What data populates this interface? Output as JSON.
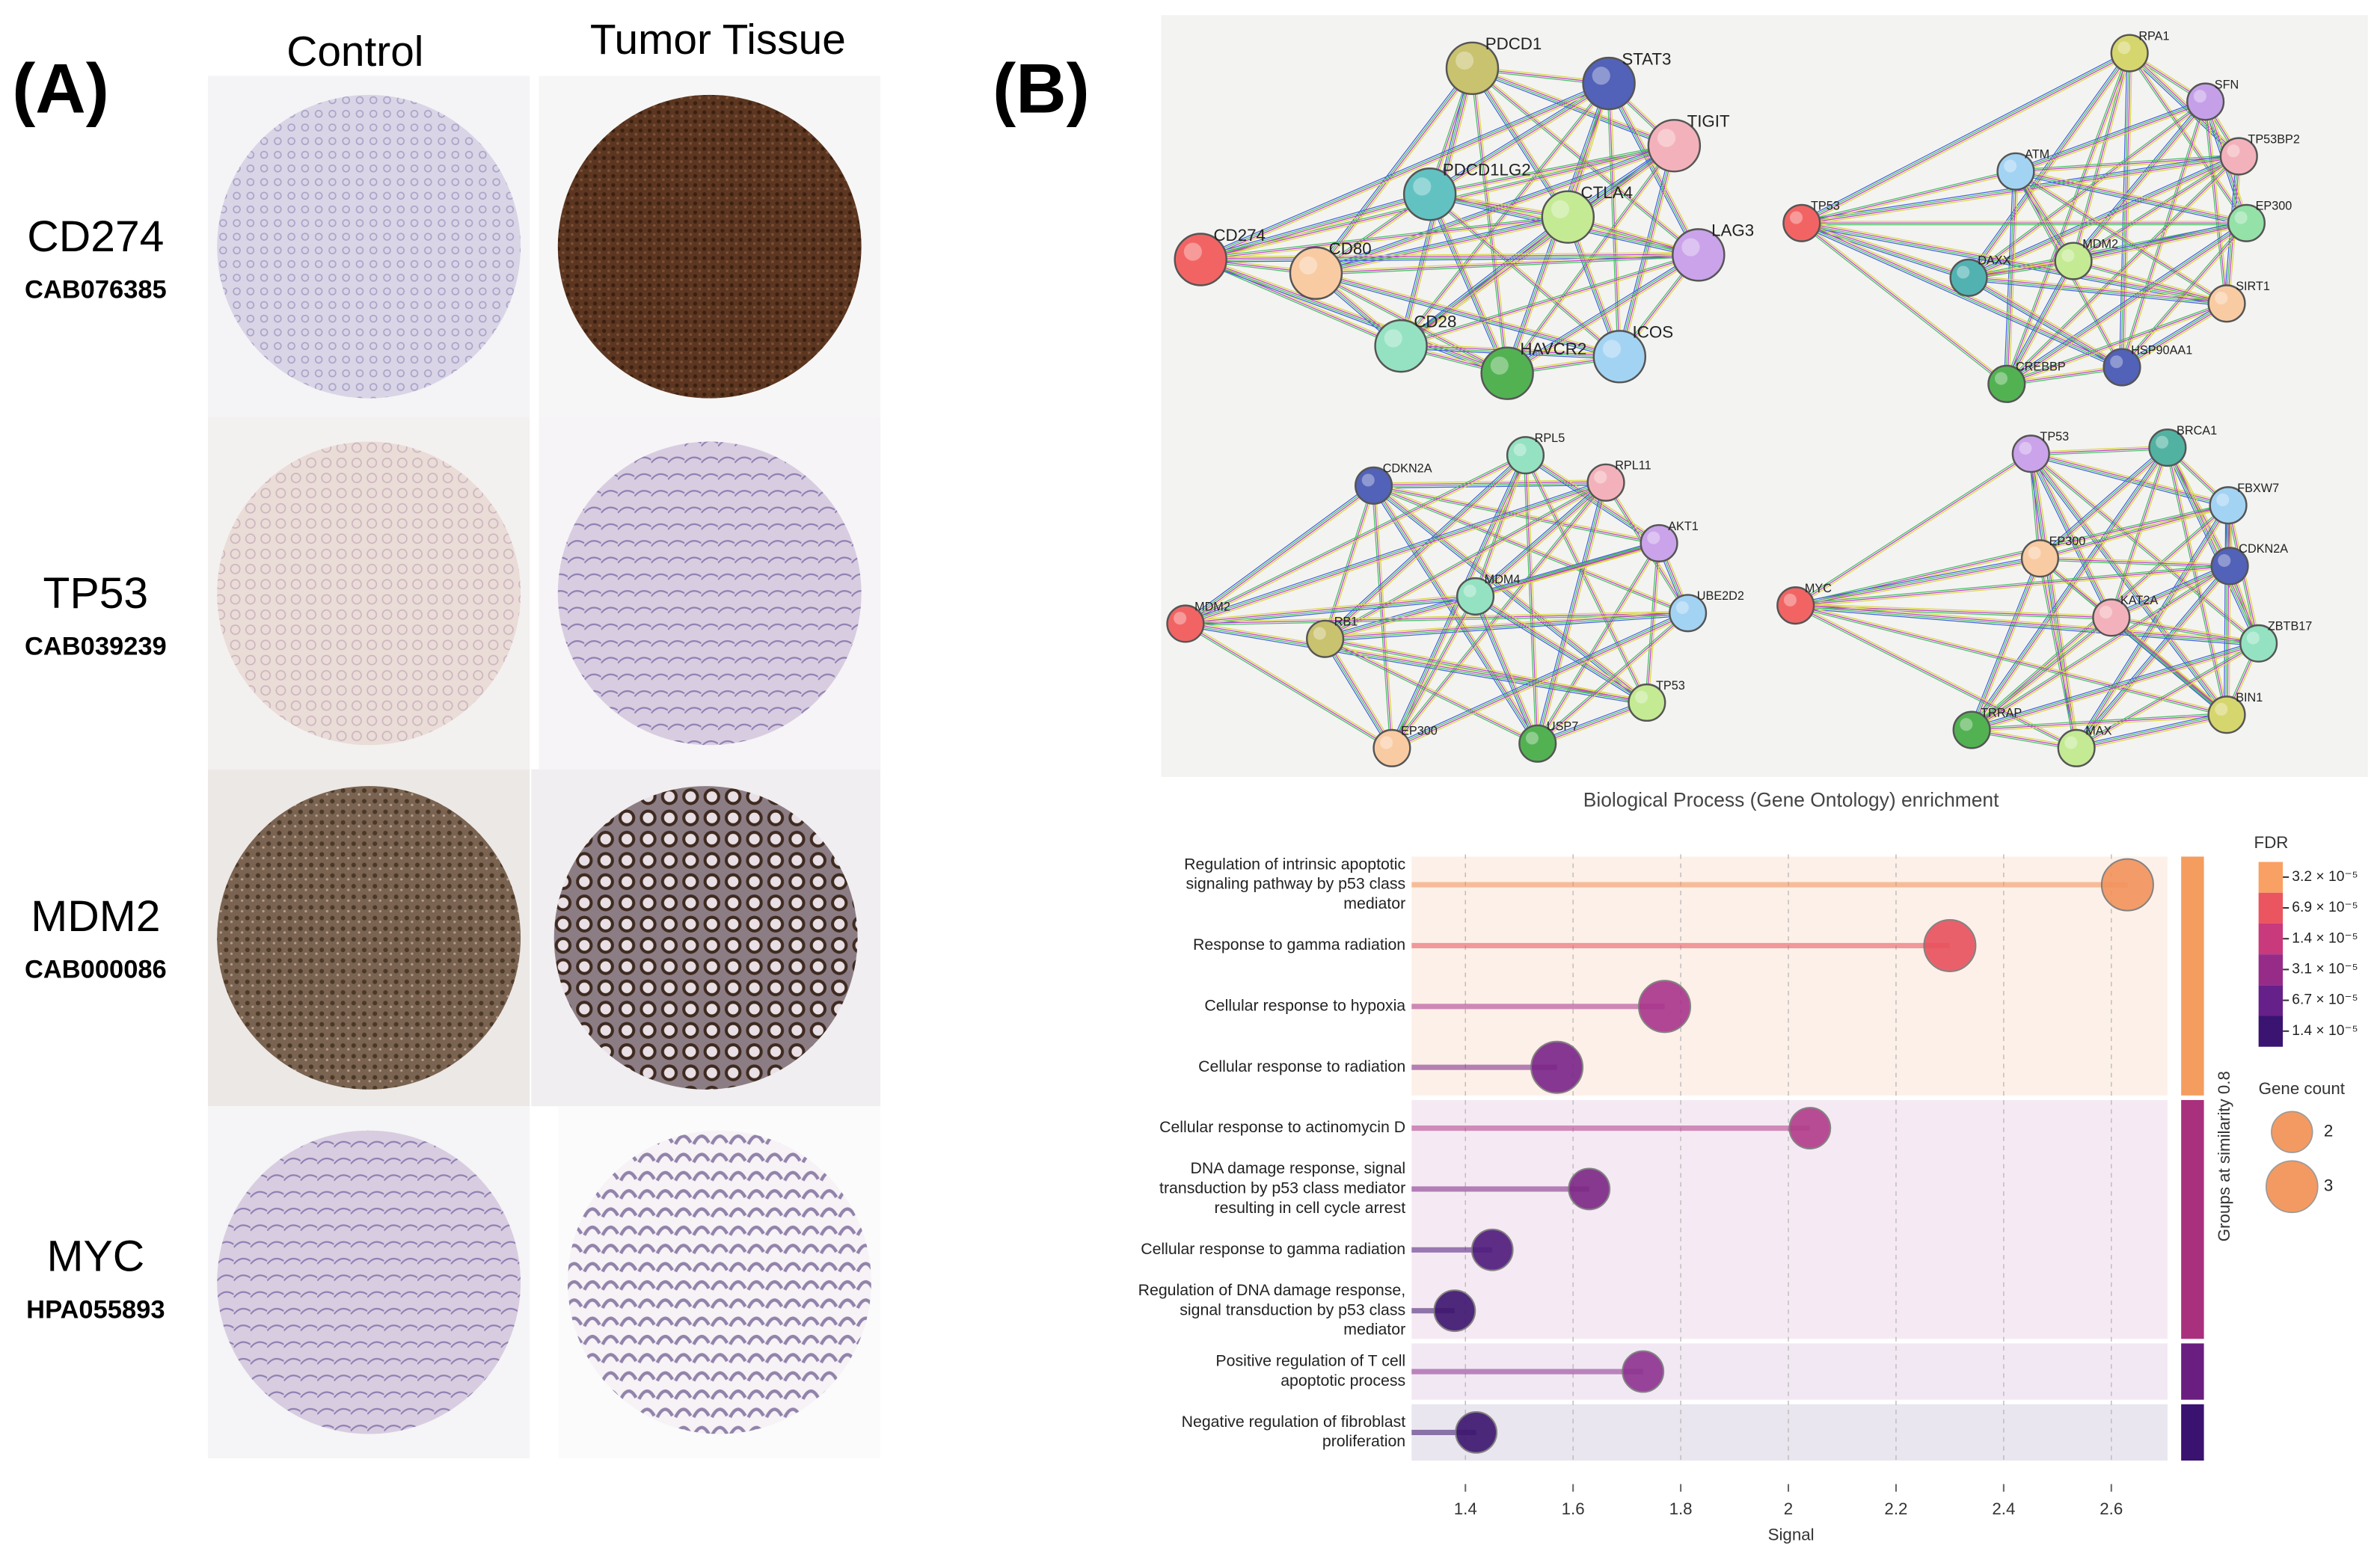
{
  "panel_a": {
    "label": "(A)",
    "columns": [
      "Control",
      "Tumor Tissue"
    ],
    "rows": [
      {
        "gene": "CD274",
        "antibody": "CAB076385"
      },
      {
        "gene": "TP53",
        "antibody": "CAB039239"
      },
      {
        "gene": "MDM2",
        "antibody": "CAB000086"
      },
      {
        "gene": "MYC",
        "antibody": "HPA055893"
      }
    ]
  },
  "panel_b": {
    "label": "(B)",
    "networks": [
      {
        "nodes": [
          "PDCD1",
          "STAT3",
          "TIGIT",
          "PDCD1LG2",
          "CTLA4",
          "CD274",
          "CD80",
          "LAG3",
          "CD28",
          "HAVCR2",
          "ICOS"
        ]
      },
      {
        "nodes": [
          "RPA1",
          "SFN",
          "TP53BP2",
          "ATM",
          "TP53",
          "EP300",
          "DAXX",
          "MDM2",
          "SIRT1",
          "CREBBP",
          "HSP90AA1"
        ]
      },
      {
        "nodes": [
          "CDKN2A",
          "RPL5",
          "RPL11",
          "AKT1",
          "MDM2",
          "RB1",
          "MDM4",
          "UBE2D2",
          "TP53",
          "EP300",
          "USP7"
        ]
      },
      {
        "nodes": [
          "TP53",
          "BRCA1",
          "FBXW7",
          "EP300",
          "CDKN2A",
          "MYC",
          "KAT2A",
          "ZBTB17",
          "BIN1",
          "TRRAP",
          "MAX"
        ]
      }
    ]
  },
  "chart_data": {
    "type": "lollipop",
    "title": "Biological Process (Gene Ontology) enrichment",
    "xlabel": "Signal",
    "y2label": "Groups at similarity 0.8",
    "categories": [
      [
        "Regulation of intrinsic apoptotic",
        "signaling pathway by p53 class",
        "mediator"
      ],
      [
        "Response to gamma radiation"
      ],
      [
        "Cellular response to hypoxia"
      ],
      [
        "Cellular response to radiation"
      ],
      [
        "Cellular response to actinomycin D"
      ],
      [
        "DNA damage response, signal",
        "transduction by p53 class mediator",
        "resulting in cell cycle arrest"
      ],
      [
        "Cellular response to gamma radiation"
      ],
      [
        "Regulation of DNA damage response,",
        "signal transduction by p53 class",
        "mediator"
      ],
      [
        "Positive regulation of T cell",
        "apoptotic process"
      ],
      [
        "Negative regulation of fibroblast",
        "proliferation"
      ]
    ],
    "values": [
      2.63,
      2.3,
      1.77,
      1.57,
      2.04,
      1.63,
      1.45,
      1.38,
      1.73,
      1.42
    ],
    "sizes": [
      3,
      3,
      3,
      3,
      2,
      2,
      2,
      2,
      2,
      2
    ],
    "colors": [
      "#f2935c",
      "#e9515d",
      "#a8348c",
      "#7a2488",
      "#b23c8a",
      "#7c2686",
      "#4e1a7c",
      "#3c146e",
      "#8e3290",
      "#3c146e"
    ],
    "groups": [
      0,
      0,
      0,
      0,
      1,
      1,
      1,
      1,
      2,
      3
    ],
    "group_colors": [
      "#f59d5e",
      "#a9307c",
      "#6a1e80",
      "#3a1270"
    ],
    "group_backgrounds": [
      "#fdf0e8",
      "#f5eaf3",
      "#f1e8f3",
      "#e9e6ef"
    ],
    "xlim": [
      1.3,
      2.71
    ],
    "xticks": [
      1.4,
      1.6,
      1.8,
      2.0,
      2.2,
      2.4,
      2.6
    ],
    "grid": true,
    "fdr_legend": {
      "title": "FDR",
      "labels": [
        "3.2 × 10⁻⁵",
        "6.9 × 10⁻⁵",
        "1.4 × 10⁻⁵",
        "3.1 × 10⁻⁵",
        "6.7 × 10⁻⁵",
        "1.4 × 10⁻⁵"
      ],
      "colors": [
        "#f9a064",
        "#ea5560",
        "#c83a7c",
        "#962c88",
        "#66208a",
        "#3a1470"
      ]
    },
    "size_legend": {
      "title": "Gene count",
      "values": [
        2,
        3
      ]
    }
  }
}
